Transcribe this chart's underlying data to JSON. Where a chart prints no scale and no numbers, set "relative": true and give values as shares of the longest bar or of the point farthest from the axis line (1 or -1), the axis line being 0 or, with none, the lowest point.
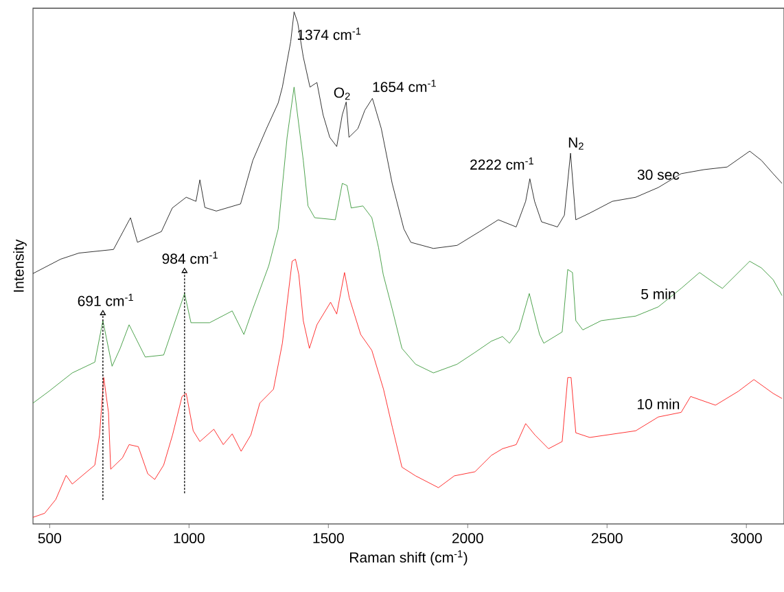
{
  "chart_data": {
    "type": "line",
    "relative": true,
    "xlabel": "Raman shift (cm$^{-1}$)",
    "ylabel": "Intensity",
    "xlim": [
      440,
      3135
    ],
    "xticks": [
      500,
      1000,
      1500,
      2000,
      2500,
      3000
    ],
    "series": [
      {
        "name": "30 sec",
        "color": "#000000",
        "x": [
          440,
          539,
          605,
          729,
          790,
          815,
          901,
          940,
          990,
          1025,
          1039,
          1057,
          1098,
          1185,
          1229,
          1278,
          1320,
          1335,
          1365,
          1377,
          1390,
          1410,
          1434,
          1459,
          1481,
          1505,
          1530,
          1550,
          1564,
          1574,
          1606,
          1631,
          1658,
          1690,
          1729,
          1771,
          1796,
          1877,
          1962,
          2043,
          2110,
          2174,
          2208,
          2223,
          2240,
          2265,
          2322,
          2347,
          2369,
          2384,
          2388,
          2438,
          2519,
          2603,
          2684,
          2766,
          2849,
          2931,
          3012,
          3054,
          3096,
          3128
        ],
        "values": [
          0.489,
          0.517,
          0.529,
          0.536,
          0.598,
          0.55,
          0.571,
          0.617,
          0.638,
          0.63,
          0.672,
          0.618,
          0.611,
          0.625,
          0.71,
          0.772,
          0.822,
          0.853,
          0.942,
          1.0,
          0.979,
          0.912,
          0.853,
          0.862,
          0.799,
          0.755,
          0.737,
          0.799,
          0.824,
          0.755,
          0.772,
          0.808,
          0.831,
          0.772,
          0.665,
          0.576,
          0.55,
          0.538,
          0.544,
          0.571,
          0.594,
          0.58,
          0.63,
          0.674,
          0.63,
          0.59,
          0.58,
          0.603,
          0.724,
          0.621,
          0.594,
          0.607,
          0.63,
          0.638,
          0.657,
          0.684,
          0.692,
          0.697,
          0.728,
          0.71,
          0.684,
          0.665
        ]
      },
      {
        "name": "5 min",
        "color": "#228b22",
        "x": [
          440,
          497,
          581,
          662,
          691,
          724,
          753,
          785,
          843,
          909,
          984,
          1007,
          1074,
          1155,
          1197,
          1229,
          1286,
          1320,
          1352,
          1377,
          1410,
          1427,
          1451,
          1525,
          1550,
          1567,
          1582,
          1624,
          1656,
          1680,
          1697,
          1729,
          1764,
          1813,
          1877,
          1962,
          2026,
          2085,
          2125,
          2150,
          2184,
          2221,
          2241,
          2258,
          2273,
          2339,
          2359,
          2376,
          2388,
          2413,
          2479,
          2603,
          2684,
          2766,
          2832,
          2889,
          2914,
          3012,
          3054,
          3096,
          3128
        ],
        "values": [
          0.236,
          0.259,
          0.295,
          0.316,
          0.397,
          0.308,
          0.343,
          0.389,
          0.326,
          0.33,
          0.45,
          0.393,
          0.393,
          0.416,
          0.37,
          0.42,
          0.504,
          0.576,
          0.755,
          0.853,
          0.71,
          0.621,
          0.598,
          0.594,
          0.665,
          0.661,
          0.617,
          0.621,
          0.598,
          0.54,
          0.487,
          0.42,
          0.343,
          0.312,
          0.295,
          0.312,
          0.335,
          0.357,
          0.366,
          0.353,
          0.379,
          0.45,
          0.406,
          0.37,
          0.353,
          0.375,
          0.497,
          0.491,
          0.397,
          0.379,
          0.397,
          0.406,
          0.424,
          0.46,
          0.491,
          0.469,
          0.46,
          0.513,
          0.5,
          0.477,
          0.446
        ]
      },
      {
        "name": "10 min",
        "color": "#ff0000",
        "x": [
          440,
          482,
          522,
          559,
          581,
          662,
          679,
          694,
          711,
          719,
          761,
          785,
          818,
          852,
          877,
          909,
          941,
          975,
          990,
          1015,
          1039,
          1089,
          1123,
          1155,
          1187,
          1222,
          1254,
          1303,
          1335,
          1370,
          1382,
          1394,
          1410,
          1432,
          1459,
          1508,
          1530,
          1558,
          1575,
          1616,
          1656,
          1698,
          1730,
          1764,
          1813,
          1895,
          1952,
          2026,
          2085,
          2125,
          2174,
          2208,
          2241,
          2290,
          2339,
          2359,
          2371,
          2388,
          2438,
          2603,
          2684,
          2766,
          2800,
          2889,
          2971,
          3027,
          3096,
          3128
        ],
        "values": [
          0.013,
          0.021,
          0.048,
          0.095,
          0.078,
          0.115,
          0.174,
          0.286,
          0.218,
          0.107,
          0.129,
          0.155,
          0.151,
          0.098,
          0.087,
          0.115,
          0.174,
          0.249,
          0.255,
          0.182,
          0.161,
          0.185,
          0.155,
          0.176,
          0.142,
          0.174,
          0.236,
          0.263,
          0.353,
          0.513,
          0.517,
          0.487,
          0.397,
          0.343,
          0.389,
          0.433,
          0.41,
          0.491,
          0.442,
          0.37,
          0.339,
          0.263,
          0.188,
          0.111,
          0.094,
          0.071,
          0.094,
          0.102,
          0.134,
          0.147,
          0.155,
          0.196,
          0.174,
          0.147,
          0.161,
          0.286,
          0.286,
          0.178,
          0.169,
          0.182,
          0.209,
          0.218,
          0.249,
          0.232,
          0.259,
          0.282,
          0.255,
          0.245
        ]
      }
    ],
    "annotations": [
      {
        "text": "1374 cm$^{-1}$",
        "x": 1374,
        "y": 1.0
      },
      {
        "text": "O$_{2}$",
        "x": 1564,
        "y": 0.824
      },
      {
        "text": "1654 cm$^{-1}$",
        "x": 1654,
        "y": 0.831
      },
      {
        "text": "2222 cm$^{-1}$",
        "x": 2222,
        "y": 0.674
      },
      {
        "text": "N$_{2}$",
        "x": 2369,
        "y": 0.724
      },
      {
        "text": "691 cm$^{-1}$",
        "x": 691,
        "y": 0.397
      },
      {
        "text": "984 cm$^{-1}$",
        "x": 984,
        "y": 0.45
      }
    ]
  }
}
